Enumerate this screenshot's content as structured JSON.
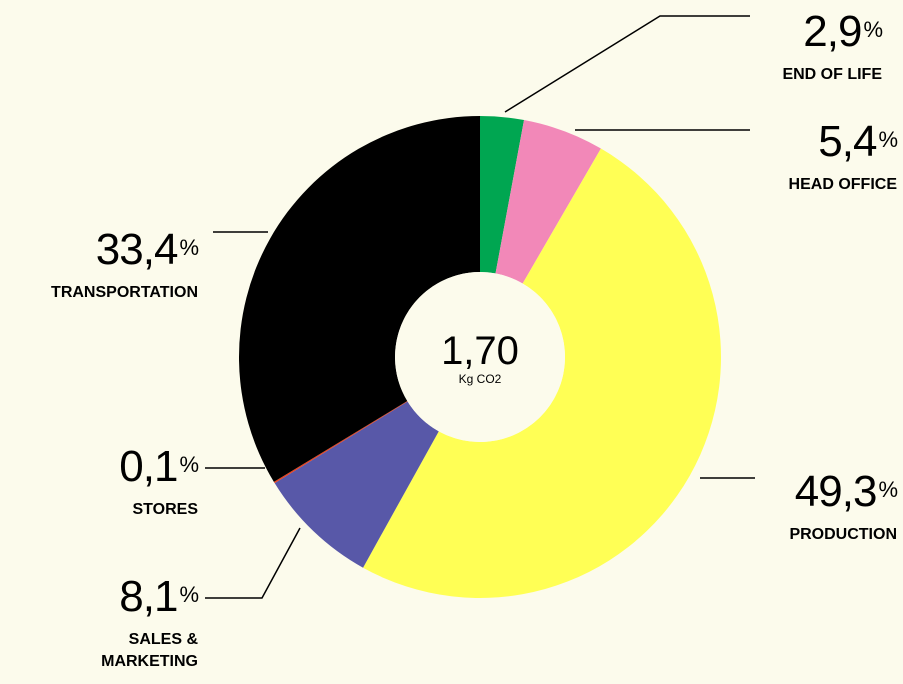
{
  "chart_data": {
    "type": "donut",
    "categories": [
      "END OF LIFE",
      "HEAD OFFICE",
      "PRODUCTION",
      "SALES & MARKETING",
      "STORES",
      "TRANSPORTATION"
    ],
    "values": [
      2.9,
      5.4,
      49.3,
      8.1,
      0.1,
      33.4
    ],
    "value_labels": [
      "2,9",
      "5,4",
      "49,3",
      "8,1",
      "0,1",
      "33,4"
    ],
    "value_suffix": "%",
    "colors": [
      "#00a651",
      "#f288b8",
      "#ffff55",
      "#5858a8",
      "#e8401c",
      "#000000"
    ],
    "center_value": "1,70",
    "center_unit": "Kg CO2"
  }
}
